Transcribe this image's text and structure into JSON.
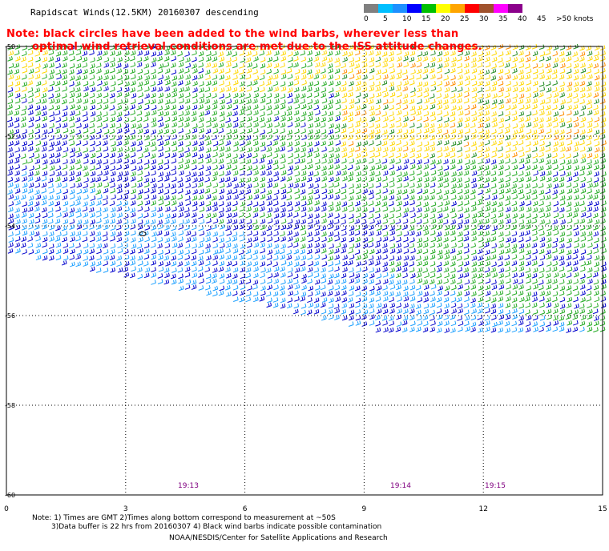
{
  "title": "Rapidscat Winds(12.5KM) 20160307 descending",
  "note_lines": [
    "Note: black circles have been added to the wind barbs, wherever less than",
    "optimal wind retrieval conditions are met due to the ISS attitude changes."
  ],
  "legend": {
    "labels": [
      "0",
      "5",
      "10",
      "15",
      "20",
      "25",
      "30",
      "35",
      "40",
      "45",
      ">50 knots"
    ],
    "colors": [
      "#808080",
      "#00bfff",
      "#1e90ff",
      "#0000ff",
      "#00c000",
      "#ffff00",
      "#ffa500",
      "#ff0000",
      "#a0522d",
      "#ff00ff",
      "#8b008b"
    ]
  },
  "axes": {
    "x_labels": [
      "0",
      "3",
      "6",
      "9",
      "12",
      "15"
    ],
    "y_labels": [
      "-50",
      "-52",
      "-54",
      "-56",
      "-58",
      "-60"
    ]
  },
  "time_labels": [
    "19:13",
    "19:14",
    "19:15"
  ],
  "footer": {
    "line1": "Note: 1) Times are GMT 2)Times along bottom correspond to measurement at ~50S",
    "line2": "3)Data buffer is 22 hrs from 20160307 4) Black wind barbs indicate possible contamination",
    "credit": "NOAA/NESDIS/Center for Satellite Applications and Research"
  },
  "colors": {
    "time_label": "#800080",
    "note": "#ff0000",
    "grid": "#000000"
  }
}
